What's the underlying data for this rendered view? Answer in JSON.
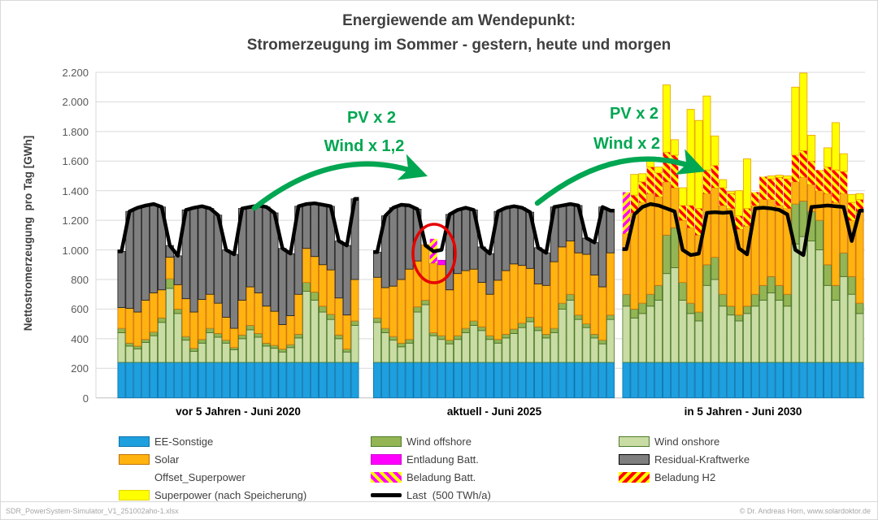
{
  "title": {
    "line1": "Energiewende am Wendepunkt:",
    "line2": "Stromerzeugung im Sommer - gestern, heute und morgen"
  },
  "y_axis": {
    "title": "Nettostromerzeugung  pro Tag [GWh]",
    "ticks": [
      "0",
      "200",
      "400",
      "600",
      "800",
      "1.000",
      "1.200",
      "1.400",
      "1.600",
      "1.800",
      "2.000",
      "2.200"
    ]
  },
  "annotations": {
    "left": {
      "line1": "PV x 2",
      "line2": "Wind x 1,2"
    },
    "right": {
      "line1": "PV x 2",
      "line2": "Wind x 2"
    }
  },
  "legend": {
    "col1": [
      {
        "label": "EE-Sonstige",
        "swatch": "ee"
      },
      {
        "label": "Solar",
        "swatch": "solar"
      },
      {
        "label": "Offset_Superpower",
        "swatch": "none"
      },
      {
        "label": "Superpower (nach Speicherung)",
        "swatch": "superpower"
      }
    ],
    "col2": [
      {
        "label": "Wind offshore",
        "swatch": "offshore"
      },
      {
        "label": "Entladung Batt.",
        "swatch": "entladung"
      },
      {
        "label": "Beladung Batt.",
        "swatch": "hatch_batt"
      },
      {
        "label": "Last  (500 TWh/a)",
        "swatch": "line"
      }
    ],
    "col3": [
      {
        "label": "Wind onshore",
        "swatch": "onshore"
      },
      {
        "label": "Residual-Kraftwerke",
        "swatch": "residual"
      },
      {
        "label": "Beladung H2",
        "swatch": "hatch_h2"
      }
    ]
  },
  "footer": {
    "left": "SDR_PowerSystem-Simulator_V1_251002aho-1.xlsx",
    "right": "© Dr. Andreas  Horn, www.solardoktor.de"
  },
  "colors": {
    "ee_sonstige": "#1E9FDE",
    "wind_onshore": "#C9DCA4",
    "wind_offshore": "#93B554",
    "solar": "#FFB310",
    "residual": "#7F7F7F",
    "superpower": "#FFFF00",
    "entladung_batt": "#FF00FF",
    "beladung_batt_stripe": "#FF00FF",
    "beladung_h2_stripe": "#FF0000",
    "last_line": "#000000",
    "annotation_green": "#00A651",
    "highlight_red": "#E60000",
    "grid": "#D9D9D9"
  },
  "chart_data": {
    "type": "bar",
    "stacked": true,
    "unit": "GWh",
    "ylabel": "Nettostromerzeugung pro Tag [GWh]",
    "ylim": [
      0,
      2200
    ],
    "grid": true,
    "days_per_group": 30,
    "stack_order": [
      "ee_sonstige",
      "wind_onshore",
      "wind_offshore",
      "solar",
      "entladung_batt",
      "residual",
      "beladung_batt",
      "beladung_h2",
      "superpower"
    ],
    "line_series_name": "Last (500 TWh/a)",
    "groups": [
      {
        "label": "vor 5 Jahren - Juni 2020",
        "series": {
          "ee_sonstige": 240,
          "wind_onshore": [
            200,
            110,
            90,
            135,
            180,
            270,
            500,
            330,
            150,
            75,
            130,
            200,
            170,
            130,
            85,
            160,
            220,
            170,
            110,
            95,
            70,
            100,
            165,
            480,
            420,
            340,
            290,
            160,
            70,
            250
          ],
          "wind_offshore": [
            30,
            20,
            20,
            20,
            25,
            30,
            65,
            30,
            25,
            20,
            25,
            30,
            25,
            20,
            15,
            25,
            30,
            25,
            20,
            20,
            20,
            20,
            25,
            60,
            55,
            40,
            35,
            25,
            20,
            30
          ],
          "solar": [
            140,
            235,
            230,
            265,
            265,
            190,
            145,
            165,
            255,
            245,
            270,
            230,
            205,
            155,
            130,
            235,
            260,
            275,
            250,
            230,
            165,
            195,
            270,
            230,
            240,
            280,
            300,
            250,
            230,
            280
          ],
          "entladung_batt": 0,
          "residual": [
            380,
            655,
            705,
            640,
            600,
            560,
            80,
            195,
            600,
            705,
            630,
            580,
            595,
            455,
            500,
            620,
            540,
            590,
            670,
            665,
            515,
            420,
            595,
            300,
            360,
            405,
            430,
            385,
            470,
            545
          ],
          "beladung_batt": 0,
          "beladung_h2": 0,
          "superpower": 0
        },
        "last": [
          990,
          1260,
          1285,
          1300,
          1310,
          1290,
          1030,
          960,
          1270,
          1285,
          1295,
          1280,
          1235,
          1000,
          970,
          1280,
          1290,
          1300,
          1290,
          1250,
          1010,
          975,
          1295,
          1310,
          1315,
          1305,
          1295,
          1060,
          1030,
          1345
        ]
      },
      {
        "label": "aktuell - Juni 2025",
        "series": {
          "ee_sonstige": 240,
          "wind_onshore": [
            270,
            200,
            150,
            105,
            130,
            340,
            390,
            180,
            155,
            125,
            155,
            200,
            250,
            215,
            155,
            130,
            165,
            195,
            235,
            275,
            215,
            165,
            200,
            360,
            420,
            290,
            235,
            165,
            125,
            290
          ],
          "wind_offshore": [
            30,
            30,
            25,
            25,
            25,
            35,
            30,
            20,
            25,
            25,
            25,
            30,
            30,
            25,
            25,
            25,
            25,
            30,
            30,
            30,
            25,
            25,
            30,
            40,
            40,
            30,
            25,
            25,
            25,
            30
          ],
          "solar": [
            275,
            275,
            340,
            430,
            475,
            310,
            375,
            470,
            480,
            340,
            420,
            390,
            350,
            300,
            280,
            400,
            430,
            440,
            390,
            330,
            290,
            330,
            450,
            380,
            360,
            420,
            470,
            400,
            360,
            420
          ],
          "entladung_batt": [
            0,
            0,
            0,
            0,
            0,
            0,
            0,
            0,
            30,
            0,
            0,
            0,
            0,
            0,
            0,
            0,
            0,
            0,
            0,
            0,
            0,
            0,
            0,
            0,
            0,
            0,
            0,
            0,
            0,
            0
          ],
          "residual": [
            170,
            485,
            530,
            505,
            430,
            350,
            0,
            0,
            0,
            510,
            430,
            425,
            400,
            240,
            275,
            465,
            425,
            390,
            390,
            380,
            245,
            220,
            370,
            280,
            250,
            320,
            110,
            220,
            540,
            285
          ],
          "beladung_batt": [
            0,
            0,
            0,
            0,
            0,
            0,
            0,
            165,
            0,
            0,
            0,
            0,
            0,
            0,
            0,
            0,
            0,
            0,
            0,
            0,
            0,
            0,
            0,
            0,
            0,
            0,
            0,
            0,
            0,
            0
          ],
          "beladung_h2": 0,
          "superpower": 0
        },
        "last": [
          985,
          1230,
          1285,
          1305,
          1300,
          1275,
          1030,
          990,
          1000,
          1240,
          1270,
          1285,
          1270,
          1020,
          975,
          1260,
          1285,
          1295,
          1285,
          1255,
          1015,
          980,
          1290,
          1300,
          1310,
          1300,
          1080,
          1050,
          1290,
          1265
        ]
      },
      {
        "label": "in 5 Jahren - Juni 2030",
        "series": {
          "ee_sonstige": 240,
          "wind_onshore": [
            380,
            300,
            330,
            380,
            420,
            600,
            640,
            420,
            330,
            280,
            520,
            560,
            380,
            320,
            280,
            330,
            380,
            420,
            470,
            420,
            380,
            800,
            850,
            820,
            760,
            520,
            420,
            580,
            460,
            330
          ],
          "wind_offshore": [
            80,
            60,
            70,
            80,
            100,
            260,
            270,
            120,
            70,
            60,
            140,
            150,
            80,
            60,
            40,
            50,
            80,
            100,
            110,
            100,
            80,
            270,
            240,
            200,
            200,
            140,
            100,
            160,
            120,
            70
          ],
          "solar": [
            410,
            650,
            680,
            680,
            600,
            360,
            270,
            420,
            510,
            520,
            480,
            470,
            600,
            660,
            580,
            540,
            600,
            580,
            520,
            540,
            580,
            150,
            160,
            180,
            200,
            480,
            560,
            400,
            380,
            620
          ],
          "entladung_batt": 0,
          "residual": 0,
          "beladung_batt": [
            280,
            0,
            0,
            0,
            0,
            0,
            0,
            0,
            0,
            0,
            0,
            0,
            0,
            0,
            0,
            0,
            0,
            0,
            0,
            0,
            0,
            0,
            0,
            0,
            0,
            0,
            0,
            0,
            0,
            0
          ],
          "beladung_h2": [
            0,
            120,
            140,
            180,
            160,
            200,
            220,
            100,
            150,
            180,
            160,
            150,
            120,
            100,
            90,
            120,
            90,
            155,
            140,
            190,
            200,
            180,
            180,
            160,
            140,
            180,
            220,
            150,
            120,
            80
          ],
          "superpower": [
            0,
            140,
            55,
            60,
            40,
            455,
            105,
            120,
            650,
            595,
            500,
            200,
            55,
            15,
            170,
            335,
            0,
            0,
            20,
            15,
            20,
            460,
            525,
            175,
            0,
            130,
            320,
            120,
            55,
            40
          ]
        },
        "last": [
          1005,
          1240,
          1290,
          1310,
          1300,
          1280,
          1260,
          1000,
          965,
          975,
          1250,
          1255,
          1250,
          1255,
          1010,
          970,
          1280,
          1285,
          1280,
          1270,
          1240,
          1000,
          965,
          1290,
          1295,
          1300,
          1295,
          1290,
          1060,
          1265
        ]
      }
    ]
  }
}
